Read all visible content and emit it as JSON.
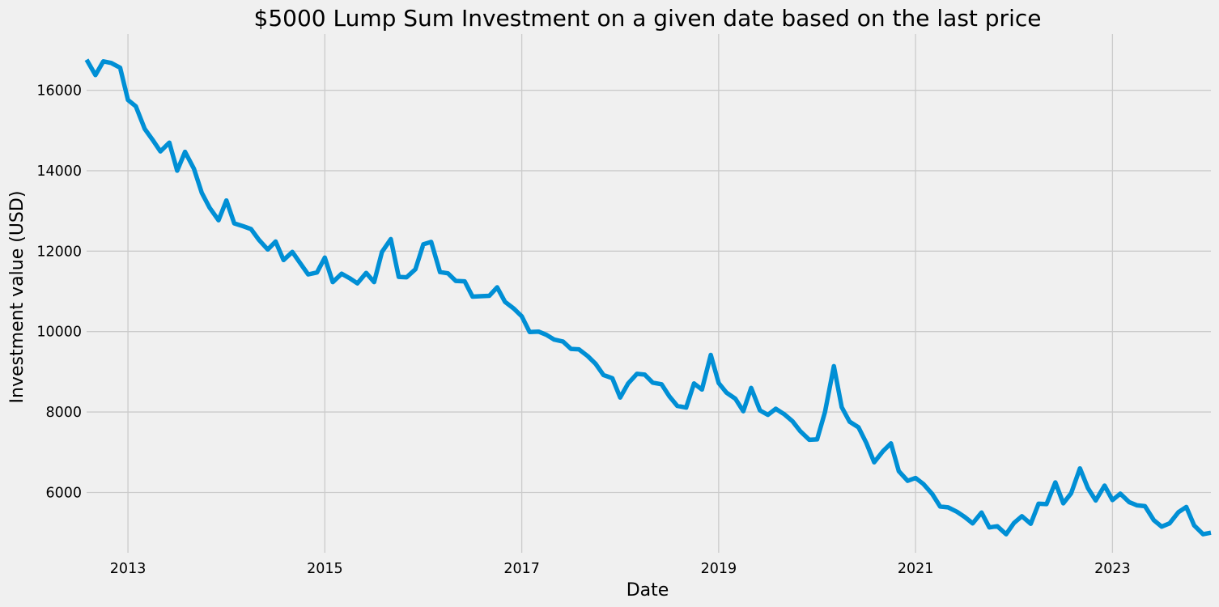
{
  "chart_data": {
    "type": "line",
    "title": "$5000 Lump Sum Investment on a given date based on the last price",
    "xlabel": "Date",
    "ylabel": "Investment value (USD)",
    "xlim": [
      2012.58,
      2024.0
    ],
    "ylim": [
      4500,
      17400
    ],
    "xticks": [
      2013,
      2015,
      2017,
      2019,
      2021,
      2023
    ],
    "xtick_labels": [
      "2013",
      "2015",
      "2017",
      "2019",
      "2021",
      "2023"
    ],
    "yticks": [
      6000,
      8000,
      10000,
      12000,
      14000,
      16000
    ],
    "ytick_labels": [
      "6000",
      "8000",
      "10000",
      "12000",
      "14000",
      "16000"
    ],
    "grid": true,
    "colors": {
      "line": "#008fd5",
      "background": "#f0f0f0",
      "grid": "#cbcbcb"
    },
    "series": [
      {
        "name": "",
        "points": [
          [
            2012.58,
            16760
          ],
          [
            2012.67,
            16380
          ],
          [
            2012.75,
            16720
          ],
          [
            2012.83,
            16680
          ],
          [
            2012.92,
            16560
          ],
          [
            2013.0,
            15760
          ],
          [
            2013.08,
            15600
          ],
          [
            2013.17,
            15040
          ],
          [
            2013.25,
            14770
          ],
          [
            2013.33,
            14480
          ],
          [
            2013.42,
            14700
          ],
          [
            2013.5,
            14000
          ],
          [
            2013.58,
            14470
          ],
          [
            2013.67,
            14050
          ],
          [
            2013.75,
            13450
          ],
          [
            2013.83,
            13080
          ],
          [
            2013.92,
            12770
          ],
          [
            2014.0,
            13260
          ],
          [
            2014.08,
            12690
          ],
          [
            2014.17,
            12620
          ],
          [
            2014.25,
            12550
          ],
          [
            2014.33,
            12280
          ],
          [
            2014.42,
            12040
          ],
          [
            2014.5,
            12240
          ],
          [
            2014.58,
            11780
          ],
          [
            2014.67,
            11980
          ],
          [
            2014.75,
            11700
          ],
          [
            2014.83,
            11420
          ],
          [
            2014.92,
            11470
          ],
          [
            2015.0,
            11840
          ],
          [
            2015.08,
            11230
          ],
          [
            2015.17,
            11440
          ],
          [
            2015.25,
            11330
          ],
          [
            2015.33,
            11200
          ],
          [
            2015.42,
            11460
          ],
          [
            2015.5,
            11230
          ],
          [
            2015.58,
            11980
          ],
          [
            2015.67,
            12300
          ],
          [
            2015.75,
            11360
          ],
          [
            2015.83,
            11350
          ],
          [
            2015.92,
            11550
          ],
          [
            2016.0,
            12170
          ],
          [
            2016.08,
            12230
          ],
          [
            2016.17,
            11480
          ],
          [
            2016.25,
            11450
          ],
          [
            2016.33,
            11260
          ],
          [
            2016.42,
            11250
          ],
          [
            2016.5,
            10870
          ],
          [
            2016.58,
            10880
          ],
          [
            2016.67,
            10890
          ],
          [
            2016.75,
            11100
          ],
          [
            2016.83,
            10740
          ],
          [
            2016.92,
            10570
          ],
          [
            2017.0,
            10380
          ],
          [
            2017.08,
            9990
          ],
          [
            2017.17,
            10000
          ],
          [
            2017.25,
            9920
          ],
          [
            2017.33,
            9800
          ],
          [
            2017.42,
            9750
          ],
          [
            2017.5,
            9570
          ],
          [
            2017.58,
            9560
          ],
          [
            2017.67,
            9390
          ],
          [
            2017.75,
            9200
          ],
          [
            2017.83,
            8920
          ],
          [
            2017.92,
            8840
          ],
          [
            2018.0,
            8360
          ],
          [
            2018.08,
            8710
          ],
          [
            2018.17,
            8950
          ],
          [
            2018.25,
            8930
          ],
          [
            2018.33,
            8730
          ],
          [
            2018.42,
            8690
          ],
          [
            2018.5,
            8390
          ],
          [
            2018.58,
            8150
          ],
          [
            2018.67,
            8110
          ],
          [
            2018.75,
            8710
          ],
          [
            2018.83,
            8560
          ],
          [
            2018.92,
            9420
          ],
          [
            2019.0,
            8720
          ],
          [
            2019.08,
            8480
          ],
          [
            2019.17,
            8330
          ],
          [
            2019.25,
            8020
          ],
          [
            2019.33,
            8600
          ],
          [
            2019.42,
            8040
          ],
          [
            2019.5,
            7930
          ],
          [
            2019.58,
            8080
          ],
          [
            2019.67,
            7940
          ],
          [
            2019.75,
            7770
          ],
          [
            2019.83,
            7520
          ],
          [
            2019.92,
            7310
          ],
          [
            2020.0,
            7320
          ],
          [
            2020.08,
            8000
          ],
          [
            2020.17,
            9140
          ],
          [
            2020.25,
            8120
          ],
          [
            2020.33,
            7760
          ],
          [
            2020.42,
            7620
          ],
          [
            2020.5,
            7230
          ],
          [
            2020.58,
            6750
          ],
          [
            2020.67,
            7030
          ],
          [
            2020.75,
            7220
          ],
          [
            2020.83,
            6530
          ],
          [
            2020.92,
            6290
          ],
          [
            2021.0,
            6360
          ],
          [
            2021.08,
            6210
          ],
          [
            2021.17,
            5960
          ],
          [
            2021.25,
            5650
          ],
          [
            2021.33,
            5630
          ],
          [
            2021.42,
            5520
          ],
          [
            2021.5,
            5390
          ],
          [
            2021.58,
            5230
          ],
          [
            2021.67,
            5500
          ],
          [
            2021.75,
            5130
          ],
          [
            2021.83,
            5160
          ],
          [
            2021.92,
            4960
          ],
          [
            2022.0,
            5240
          ],
          [
            2022.08,
            5410
          ],
          [
            2022.17,
            5220
          ],
          [
            2022.25,
            5720
          ],
          [
            2022.33,
            5710
          ],
          [
            2022.42,
            6250
          ],
          [
            2022.5,
            5730
          ],
          [
            2022.58,
            5980
          ],
          [
            2022.67,
            6600
          ],
          [
            2022.75,
            6110
          ],
          [
            2022.83,
            5800
          ],
          [
            2022.92,
            6170
          ],
          [
            2023.0,
            5810
          ],
          [
            2023.08,
            5970
          ],
          [
            2023.17,
            5760
          ],
          [
            2023.25,
            5680
          ],
          [
            2023.33,
            5660
          ],
          [
            2023.42,
            5310
          ],
          [
            2023.5,
            5150
          ],
          [
            2023.58,
            5230
          ],
          [
            2023.67,
            5510
          ],
          [
            2023.75,
            5640
          ],
          [
            2023.83,
            5180
          ],
          [
            2023.92,
            4960
          ],
          [
            2024.0,
            5000
          ]
        ]
      }
    ]
  }
}
